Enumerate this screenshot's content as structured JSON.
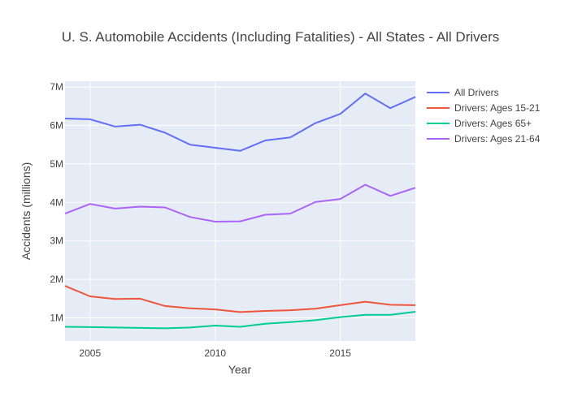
{
  "chart_data": {
    "type": "line",
    "title": "U. S. Automobile Accidents (Including Fatalities) - All States - All Drivers",
    "xlabel": "Year",
    "ylabel": "Accidents (millions)",
    "x": [
      2004,
      2005,
      2006,
      2007,
      2008,
      2009,
      2010,
      2011,
      2012,
      2013,
      2014,
      2015,
      2016,
      2017,
      2018
    ],
    "xlim": [
      2004,
      2018
    ],
    "ylim": [
      400000,
      7150000
    ],
    "x_ticks": [
      2005,
      2010,
      2015
    ],
    "x_tick_labels": [
      "2005",
      "2010",
      "2015"
    ],
    "y_ticks": [
      1000000,
      2000000,
      3000000,
      4000000,
      5000000,
      6000000,
      7000000
    ],
    "y_tick_labels": [
      "1M",
      "2M",
      "3M",
      "4M",
      "5M",
      "6M",
      "7M"
    ],
    "grid": true,
    "legend_position": "top-right",
    "series": [
      {
        "name": "All Drivers",
        "color": "#636efa",
        "values": [
          6180000,
          6160000,
          5970000,
          6020000,
          5810000,
          5500000,
          5420000,
          5340000,
          5610000,
          5690000,
          6060000,
          6300000,
          6830000,
          6450000,
          6740000
        ]
      },
      {
        "name": "Drivers: Ages 15-21",
        "color": "#ef553b",
        "values": [
          1830000,
          1560000,
          1490000,
          1500000,
          1310000,
          1250000,
          1220000,
          1150000,
          1180000,
          1200000,
          1240000,
          1330000,
          1420000,
          1340000,
          1330000
        ]
      },
      {
        "name": "Drivers: Ages 65+",
        "color": "#00cc96",
        "values": [
          770000,
          760000,
          750000,
          740000,
          730000,
          750000,
          800000,
          770000,
          850000,
          890000,
          940000,
          1020000,
          1080000,
          1080000,
          1160000
        ]
      },
      {
        "name": "Drivers: Ages 21-64",
        "color": "#ab63fa",
        "values": [
          3710000,
          3960000,
          3840000,
          3890000,
          3870000,
          3620000,
          3500000,
          3510000,
          3680000,
          3710000,
          4010000,
          4090000,
          4460000,
          4170000,
          4380000
        ]
      }
    ]
  }
}
